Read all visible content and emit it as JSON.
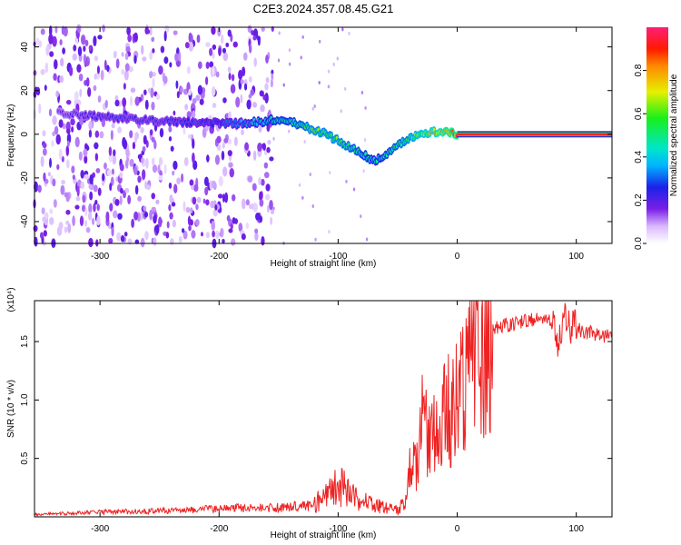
{
  "title": "C2E3.2024.357.08.45.G21",
  "chart_data": [
    {
      "type": "heatmap",
      "xlabel": "Height of straight line (km)",
      "ylabel": "Frequency (Hz)",
      "xlim": [
        -355,
        130
      ],
      "ylim": [
        -50,
        49
      ],
      "xticks": [
        -300,
        -200,
        -100,
        0,
        100
      ],
      "xtick_labels": [
        "-300",
        "-200",
        "-100",
        "0",
        "100"
      ],
      "yticks": [
        -40,
        -20,
        0,
        20,
        40
      ],
      "ytick_labels": [
        "-40",
        "-20",
        "0",
        "20",
        "40"
      ],
      "colorbar": {
        "label": "Normalized spectral amplitude",
        "range": [
          0.0,
          1.0
        ],
        "ticks": [
          0.0,
          0.2,
          0.4,
          0.6,
          0.8
        ],
        "tick_labels": [
          "0.0",
          "0.2",
          "0.4",
          "0.6",
          "0.8"
        ],
        "colormap": "rainbow"
      },
      "signal_trace": {
        "x": [
          -335,
          -300,
          -250,
          -200,
          -180,
          -160,
          -150,
          -140,
          -130,
          -120,
          -110,
          -100,
          -90,
          -80,
          -70,
          -60,
          -50,
          -40,
          -30,
          -20,
          -10,
          0,
          20,
          60,
          90,
          130
        ],
        "y": [
          10,
          8,
          6,
          5,
          5,
          6,
          7,
          6,
          4,
          2,
          0,
          -3,
          -6,
          -9,
          -12,
          -10,
          -5,
          -2,
          0,
          1,
          1,
          0,
          0,
          0,
          0,
          0
        ],
        "amplitude": [
          0.2,
          0.25,
          0.25,
          0.3,
          0.35,
          0.45,
          0.5,
          0.5,
          0.55,
          0.6,
          0.6,
          0.6,
          0.55,
          0.5,
          0.45,
          0.5,
          0.55,
          0.6,
          0.7,
          0.75,
          0.85,
          0.9,
          0.9,
          0.9,
          0.9,
          0.9
        ]
      },
      "noise_region_x": [
        -355,
        -155
      ]
    },
    {
      "type": "line",
      "xlabel": "Height of straight line (km)",
      "ylabel": "SNR (10 * v/v)",
      "y_multiplier": "(x10⁴)",
      "xlim": [
        -355,
        130
      ],
      "ylim": [
        0,
        18500
      ],
      "xticks": [
        -300,
        -200,
        -100,
        0,
        100
      ],
      "xtick_labels": [
        "-300",
        "-200",
        "-100",
        "0",
        "100"
      ],
      "yticks": [
        5000,
        10000,
        15000
      ],
      "ytick_labels": [
        "0.5",
        "1.0",
        "1.5"
      ],
      "series": [
        {
          "color": "#ee2222",
          "x": [
            -355,
            -300,
            -250,
            -200,
            -150,
            -120,
            -110,
            -100,
            -90,
            -80,
            -70,
            -60,
            -50,
            -42,
            -38,
            -35,
            -30,
            -25,
            -20,
            -15,
            -10,
            -5,
            0,
            5,
            10,
            20,
            30,
            40,
            50,
            60,
            70,
            80,
            85,
            90,
            95,
            100,
            110,
            120,
            130
          ],
          "values": [
            200,
            400,
            500,
            700,
            800,
            1000,
            2000,
            3000,
            2000,
            1500,
            1000,
            800,
            600,
            1500,
            6000,
            4000,
            8000,
            7000,
            9000,
            6000,
            11000,
            8000,
            12000,
            11500,
            13000,
            14500,
            16000,
            16500,
            16500,
            17000,
            16800,
            16700,
            15000,
            17500,
            16000,
            16000,
            15800,
            15500,
            15400
          ]
        }
      ]
    }
  ]
}
